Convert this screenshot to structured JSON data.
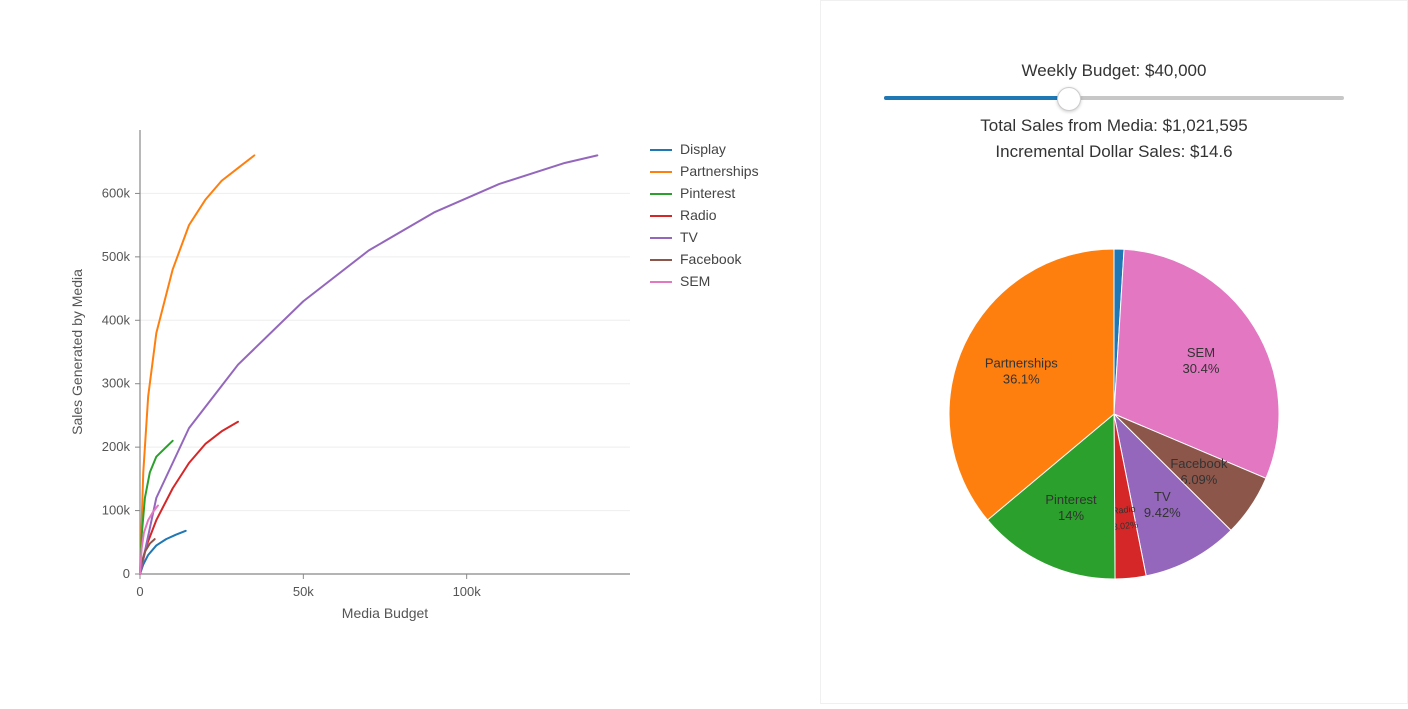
{
  "line_chart": {
    "type": "line",
    "xlabel": "Media Budget",
    "ylabel": "Sales Generated by Media",
    "label_fontsize": 14,
    "tick_fontsize": 13,
    "axis_color": "#888888",
    "tick_color": "#555555",
    "grid_color": "#eeeeee",
    "grid": true,
    "background_color": "#ffffff",
    "xlim": [
      0,
      150000
    ],
    "ylim": [
      0,
      700000
    ],
    "xticks": [
      0,
      50000,
      100000
    ],
    "xtick_labels": [
      "0",
      "50k",
      "100k"
    ],
    "yticks": [
      0,
      100000,
      200000,
      300000,
      400000,
      500000,
      600000
    ],
    "ytick_labels": [
      "0",
      "100k",
      "200k",
      "300k",
      "400k",
      "500k",
      "600k"
    ],
    "line_width": 2,
    "series": [
      {
        "name": "Display",
        "color": "#1f77b4",
        "x": [
          0,
          1000,
          2500,
          5000,
          8000,
          11000,
          14000
        ],
        "y": [
          0,
          15000,
          30000,
          45000,
          55000,
          62000,
          68000
        ]
      },
      {
        "name": "Partnerships",
        "color": "#ff7f0e",
        "x": [
          0,
          1000,
          2500,
          5000,
          10000,
          15000,
          20000,
          25000,
          30000,
          35000
        ],
        "y": [
          0,
          160000,
          280000,
          380000,
          480000,
          550000,
          590000,
          620000,
          640000,
          660000
        ]
      },
      {
        "name": "Pinterest",
        "color": "#2ca02c",
        "x": [
          0,
          500,
          1500,
          3000,
          5000,
          8000,
          10000
        ],
        "y": [
          0,
          60000,
          120000,
          160000,
          185000,
          200000,
          210000
        ]
      },
      {
        "name": "Radio",
        "color": "#d62728",
        "x": [
          0,
          2000,
          5000,
          10000,
          15000,
          20000,
          25000,
          30000
        ],
        "y": [
          0,
          45000,
          85000,
          135000,
          175000,
          205000,
          225000,
          240000
        ]
      },
      {
        "name": "TV",
        "color": "#9467bd",
        "x": [
          0,
          5000,
          15000,
          30000,
          50000,
          70000,
          90000,
          110000,
          130000,
          140000
        ],
        "y": [
          0,
          120000,
          230000,
          330000,
          430000,
          510000,
          570000,
          615000,
          648000,
          660000
        ]
      },
      {
        "name": "Facebook",
        "color": "#8c564b",
        "x": [
          0,
          500,
          1500,
          3000,
          4500
        ],
        "y": [
          0,
          18000,
          35000,
          48000,
          55000
        ]
      },
      {
        "name": "SEM",
        "color": "#e377c2",
        "x": [
          0,
          500,
          1200,
          2500,
          4000,
          5500
        ],
        "y": [
          0,
          40000,
          65000,
          85000,
          98000,
          108000
        ]
      }
    ],
    "legend_fontsize": 14
  },
  "slider": {
    "title_prefix": "Weekly Budget: ",
    "value_label": "$40,000",
    "fraction": 0.4,
    "fill_color": "#1f77b4",
    "bg_color": "#c7c7c7",
    "metric1_prefix": "Total Sales from Media: ",
    "metric1_value": "$1,021,595",
    "metric2_prefix": "Incremental Dollar Sales: ",
    "metric2_value": "$14.6"
  },
  "pie_chart": {
    "type": "pie",
    "radius": 165,
    "label_fontsize": 13,
    "label_color": "#333333",
    "background_color": "#ffffff",
    "slices": [
      {
        "name": "Display",
        "label": "",
        "pct_label": "",
        "value": 0.97,
        "color": "#1f77b4"
      },
      {
        "name": "SEM",
        "label": "SEM",
        "pct_label": "30.4%",
        "value": 30.4,
        "color": "#e377c2"
      },
      {
        "name": "Facebook",
        "label": "Facebook",
        "pct_label": "6.09%",
        "value": 6.09,
        "color": "#8c564b"
      },
      {
        "name": "TV",
        "label": "TV",
        "pct_label": "9.42%",
        "value": 9.42,
        "color": "#9467bd"
      },
      {
        "name": "Radio",
        "label": "Radio",
        "pct_label": "3.02%",
        "value": 3.02,
        "color": "#d62728"
      },
      {
        "name": "Pinterest",
        "label": "Pinterest",
        "pct_label": "14%",
        "value": 14.0,
        "color": "#2ca02c"
      },
      {
        "name": "Partnerships",
        "label": "Partnerships",
        "pct_label": "36.1%",
        "value": 36.1,
        "color": "#ff7f0e"
      }
    ]
  }
}
